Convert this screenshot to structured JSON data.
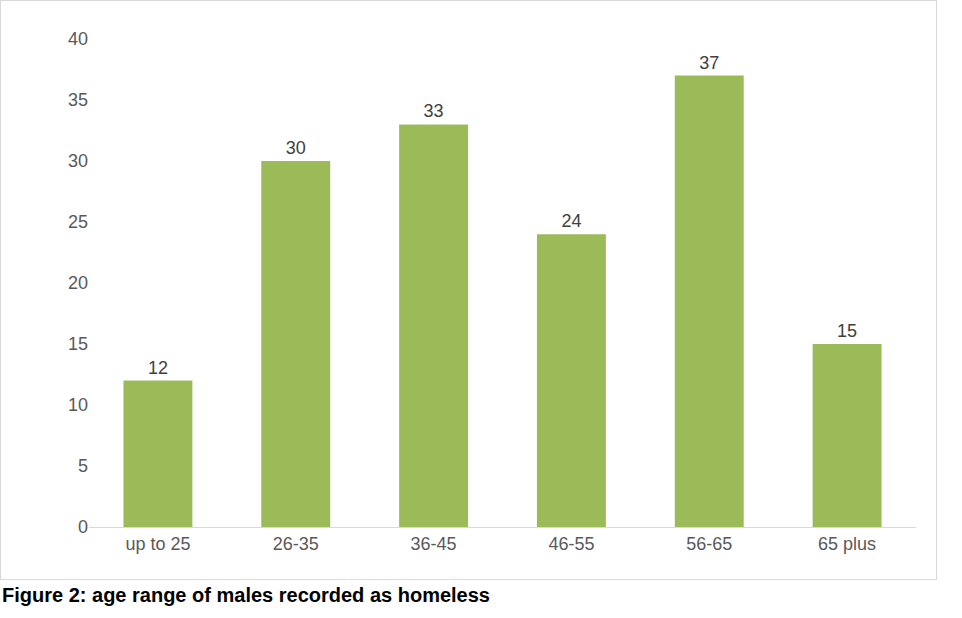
{
  "chart_data": {
    "type": "bar",
    "title": "Figure 2: age range of males recorded as homeless",
    "categories": [
      "up to 25",
      "26-35",
      "36-45",
      "46-55",
      "56-65",
      "65 plus"
    ],
    "values": [
      12,
      30,
      33,
      24,
      37,
      15
    ],
    "color": "#9bbb59",
    "ylim": [
      0,
      40
    ],
    "yticks": [
      0,
      5,
      10,
      15,
      20,
      25,
      30,
      35,
      40
    ],
    "grid": false,
    "data_labels": true
  }
}
